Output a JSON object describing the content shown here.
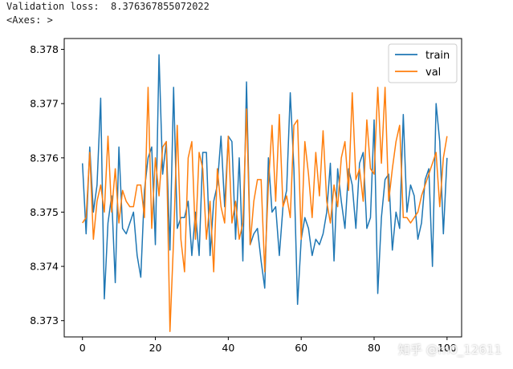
{
  "console": {
    "line1": "Validation loss:  8.376367855072022",
    "line2": "<Axes: >"
  },
  "watermark": "知乎 @m0_12611",
  "colors": {
    "train": "#1f77b4",
    "val": "#ff7f0e"
  },
  "chart_data": {
    "type": "line",
    "xlim": [
      -5,
      104
    ],
    "ylim": [
      8.3727,
      8.3782
    ],
    "x_ticks": [
      0,
      20,
      40,
      60,
      80,
      100
    ],
    "y_ticks": [
      8.373,
      8.374,
      8.375,
      8.376,
      8.377,
      8.378
    ],
    "x_tick_labels": [
      "0",
      "20",
      "40",
      "60",
      "80",
      "100"
    ],
    "y_tick_labels": [
      "8.373",
      "8.374",
      "8.375",
      "8.376",
      "8.377",
      "8.378"
    ],
    "legend_position": "top-right",
    "grid": false,
    "series": [
      {
        "name": "train",
        "values": [
          8.3759,
          8.3746,
          8.3762,
          8.375,
          8.3755,
          8.3771,
          8.3734,
          8.3748,
          8.3753,
          8.3737,
          8.3762,
          8.3747,
          8.3746,
          8.3748,
          8.375,
          8.3742,
          8.3738,
          8.3754,
          8.376,
          8.3762,
          8.3744,
          8.3779,
          8.3757,
          8.3763,
          8.3743,
          8.3773,
          8.3747,
          8.3749,
          8.3749,
          8.3752,
          8.3742,
          8.375,
          8.3742,
          8.3761,
          8.3761,
          8.3742,
          8.3752,
          8.3755,
          8.3764,
          8.3751,
          8.3764,
          8.3763,
          8.3745,
          8.376,
          8.3741,
          8.3774,
          8.3744,
          8.3746,
          8.3747,
          8.3741,
          8.3736,
          8.376,
          8.375,
          8.3751,
          8.3742,
          8.3751,
          8.3754,
          8.3772,
          8.3758,
          8.3733,
          8.3745,
          8.3749,
          8.3747,
          8.3742,
          8.3745,
          8.3744,
          8.3746,
          8.375,
          8.3759,
          8.3741,
          8.3758,
          8.3752,
          8.3747,
          8.3758,
          8.3755,
          8.3747,
          8.3759,
          8.3761,
          8.3747,
          8.3749,
          8.3767,
          8.3735,
          8.3749,
          8.3756,
          8.3757,
          8.3743,
          8.375,
          8.3747,
          8.3768,
          8.375,
          8.3755,
          8.3753,
          8.3745,
          8.3748,
          8.3756,
          8.3758,
          8.374,
          8.377,
          8.3763,
          8.3746,
          8.376
        ],
        "color": "#1f77b4"
      },
      {
        "name": "val",
        "values": [
          8.3748,
          8.3749,
          8.3761,
          8.3745,
          8.3752,
          8.3755,
          8.375,
          8.3764,
          8.375,
          8.3758,
          8.3748,
          8.3754,
          8.3752,
          8.3751,
          8.3751,
          8.3755,
          8.3755,
          8.3749,
          8.3773,
          8.3747,
          8.376,
          8.3753,
          8.3762,
          8.3763,
          8.3728,
          8.3745,
          8.3766,
          8.3745,
          8.3739,
          8.376,
          8.3763,
          8.3745,
          8.3761,
          8.3758,
          8.3745,
          8.3752,
          8.3739,
          8.3758,
          8.3751,
          8.3748,
          8.3764,
          8.3748,
          8.3752,
          8.3745,
          8.3748,
          8.3769,
          8.3744,
          8.3752,
          8.3756,
          8.3756,
          8.3739,
          8.3755,
          8.3766,
          8.3752,
          8.3768,
          8.3751,
          8.3753,
          8.3749,
          8.3766,
          8.3767,
          8.3745,
          8.3763,
          8.3757,
          8.3749,
          8.3761,
          8.3753,
          8.3765,
          8.3752,
          8.3748,
          8.3755,
          8.3751,
          8.376,
          8.3763,
          8.3754,
          8.3772,
          8.3756,
          8.3758,
          8.3752,
          8.3767,
          8.3758,
          8.3757,
          8.3773,
          8.3759,
          8.3773,
          8.3752,
          8.3758,
          8.3763,
          8.3766,
          8.3749,
          8.3749,
          8.3748,
          8.3749,
          8.375,
          8.3753,
          8.3755,
          8.3757,
          8.3759,
          8.3761,
          8.3751,
          8.376,
          8.3764
        ],
        "color": "#ff7f0e"
      }
    ]
  }
}
